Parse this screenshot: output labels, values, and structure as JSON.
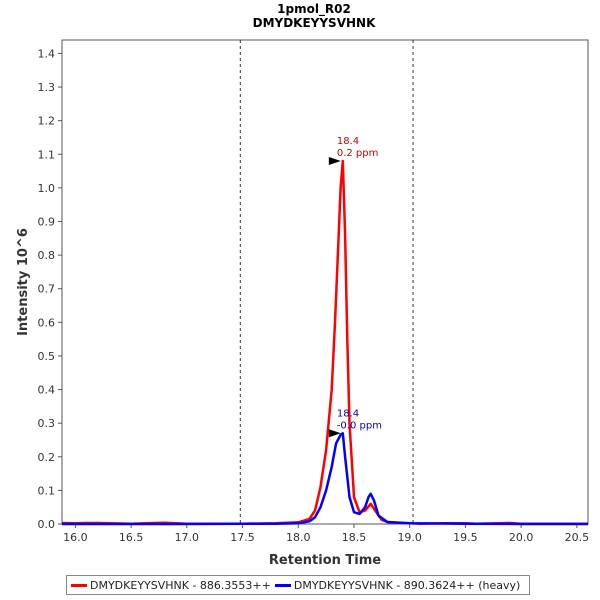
{
  "chart_data": {
    "type": "line",
    "title": "1pmol_R02",
    "subtitle": "DMYDKEYYSVHNK",
    "xlabel": "Retention Time",
    "ylabel": "Intensity 10^6",
    "xlim": [
      15.88,
      20.6
    ],
    "ylim": [
      0,
      1.44
    ],
    "xticks": [
      "16.0",
      "16.5",
      "17.0",
      "17.5",
      "18.0",
      "18.5",
      "19.0",
      "19.5",
      "20.0",
      "20.5"
    ],
    "yticks": [
      "0.0",
      "0.1",
      "0.2",
      "0.3",
      "0.4",
      "0.5",
      "0.6",
      "0.7",
      "0.8",
      "0.9",
      "1.0",
      "1.1",
      "1.2",
      "1.3",
      "1.4"
    ],
    "vlines": [
      17.48,
      19.03
    ],
    "grid": false,
    "legend_position": "bottom",
    "series": [
      {
        "name": "DMYDKEYYSVHNK - 886.3553++",
        "color": "#ff0000",
        "x": [
          15.88,
          16.0,
          16.1,
          16.2,
          16.3,
          16.5,
          16.7,
          16.8,
          16.9,
          17.0,
          17.2,
          17.5,
          17.8,
          18.0,
          18.1,
          18.15,
          18.2,
          18.25,
          18.3,
          18.33,
          18.36,
          18.38,
          18.4,
          18.42,
          18.44,
          18.46,
          18.5,
          18.55,
          18.6,
          18.65,
          18.7,
          18.75,
          18.8,
          18.9,
          19.0,
          19.1,
          19.3,
          19.5,
          19.6,
          19.8,
          19.9,
          20.0,
          20.2,
          20.6
        ],
        "y": [
          0.003,
          0.002,
          0.003,
          0.003,
          0.002,
          0.001,
          0.003,
          0.004,
          0.002,
          0.001,
          0.001,
          0.001,
          0.002,
          0.005,
          0.015,
          0.04,
          0.11,
          0.22,
          0.4,
          0.6,
          0.84,
          1.0,
          1.08,
          0.86,
          0.55,
          0.3,
          0.08,
          0.035,
          0.04,
          0.06,
          0.035,
          0.012,
          0.006,
          0.003,
          0.002,
          0.001,
          0.002,
          0.002,
          0.001,
          0.002,
          0.003,
          0.001,
          0.001,
          0.001
        ]
      },
      {
        "name": "DMYDKEYYSVHNK - 890.3624++ (heavy)",
        "color": "#0000ff",
        "x": [
          15.88,
          16.5,
          17.0,
          17.5,
          17.8,
          18.0,
          18.1,
          18.15,
          18.2,
          18.25,
          18.3,
          18.34,
          18.38,
          18.4,
          18.42,
          18.46,
          18.5,
          18.55,
          18.6,
          18.63,
          18.65,
          18.68,
          18.72,
          18.8,
          19.0,
          19.5,
          20.0,
          20.6
        ],
        "y": [
          0.0,
          0.0,
          0.0,
          0.001,
          0.001,
          0.002,
          0.008,
          0.02,
          0.05,
          0.1,
          0.17,
          0.24,
          0.265,
          0.27,
          0.2,
          0.08,
          0.035,
          0.03,
          0.05,
          0.08,
          0.09,
          0.07,
          0.025,
          0.006,
          0.002,
          0.001,
          0.0,
          0.0
        ]
      }
    ],
    "annotations": [
      {
        "x": 18.4,
        "y": 1.08,
        "line1": "18.4",
        "line2": "0.2 ppm",
        "color": "#cc0000"
      },
      {
        "x": 18.4,
        "y": 0.27,
        "line1": "18.4",
        "line2": "-0.0 ppm",
        "color": "#0000cc"
      }
    ]
  }
}
